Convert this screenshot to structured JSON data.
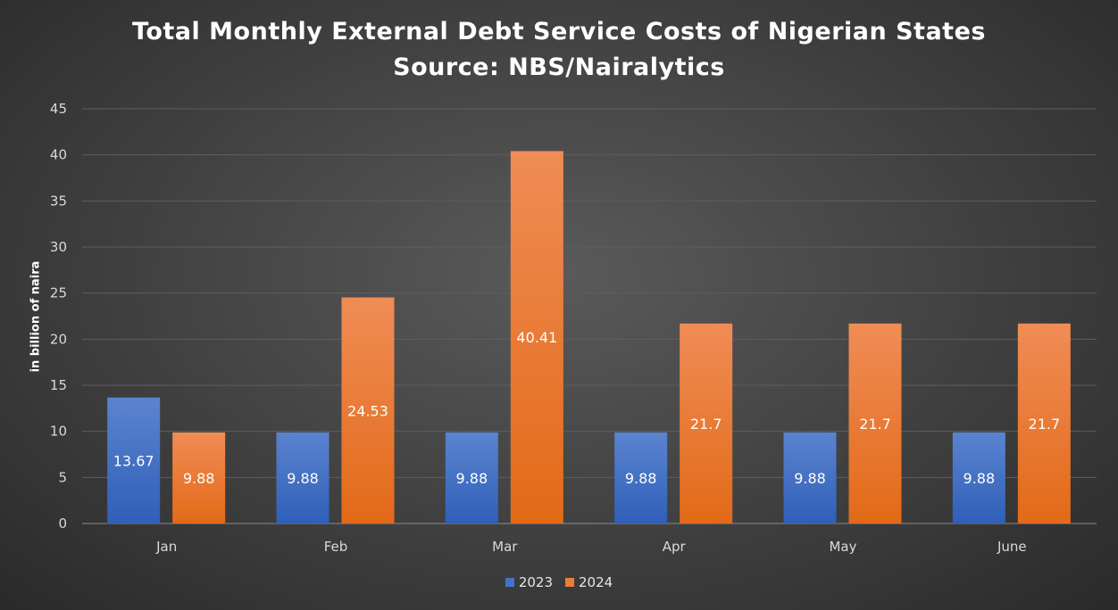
{
  "chart_data": {
    "type": "bar",
    "title": "Total Monthly External Debt Service Costs of Nigerian States",
    "subtitle": "Source: NBS/Nairalytics",
    "xlabel": "",
    "ylabel": "in billion of naira",
    "categories": [
      "Jan",
      "Feb",
      "Mar",
      "Apr",
      "May",
      "June"
    ],
    "series": [
      {
        "name": "2023",
        "color": "#4472c4",
        "values": [
          13.67,
          9.88,
          9.88,
          9.88,
          9.88,
          9.88
        ],
        "labels": [
          "13.67",
          "9.88",
          "9.88",
          "9.88",
          "9.88",
          "9.88"
        ]
      },
      {
        "name": "2024",
        "color": "#ed7d31",
        "values": [
          9.88,
          24.53,
          40.41,
          21.7,
          21.7,
          21.7
        ],
        "labels": [
          "9.88",
          "24.53",
          "40.41",
          "21.7",
          "21.7",
          "21.7"
        ]
      }
    ],
    "ylim": [
      0,
      45
    ],
    "yticks": [
      "0",
      "5",
      "10",
      "15",
      "20",
      "25",
      "30",
      "35",
      "40",
      "45"
    ],
    "grid": true,
    "legend": "bottom"
  }
}
